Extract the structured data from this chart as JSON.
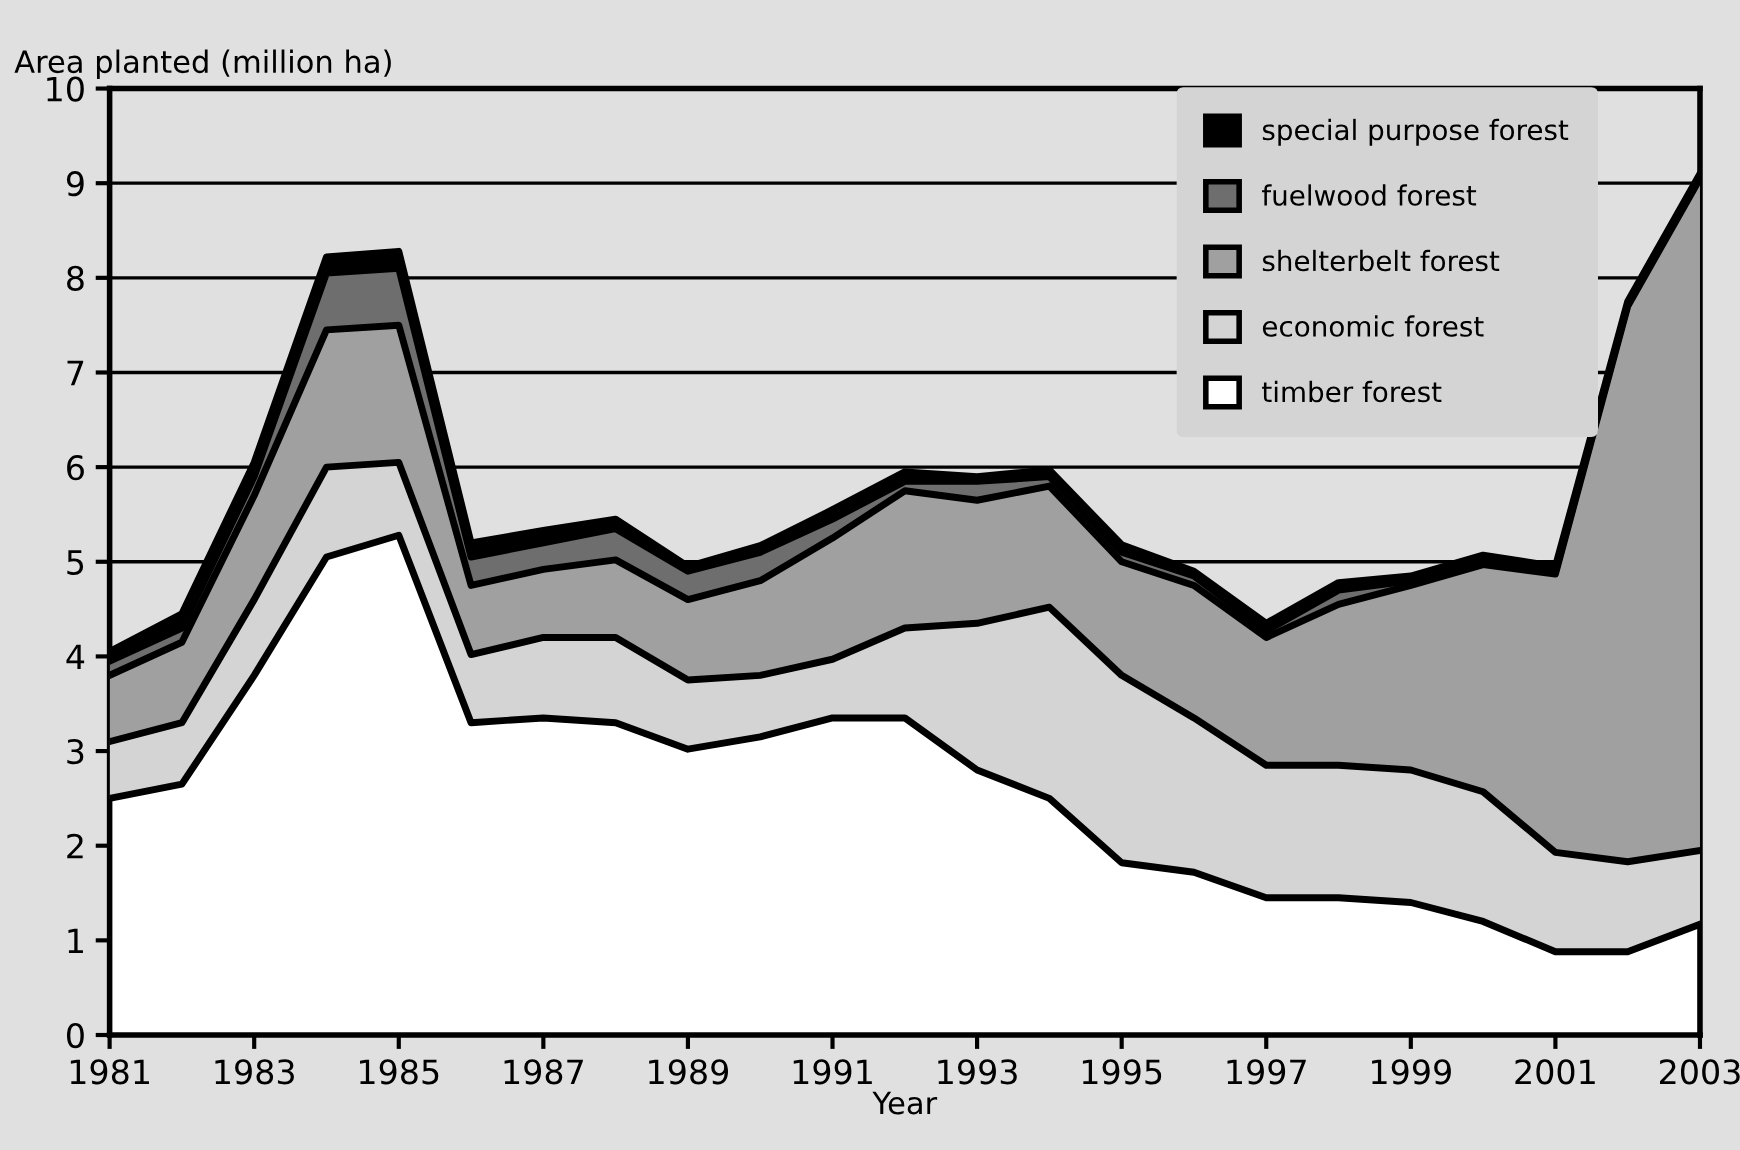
{
  "chart_data": {
    "type": "area",
    "stacked": true,
    "xlabel": "Year",
    "ylabel": "Area planted (million ha)",
    "x": [
      1981,
      1982,
      1983,
      1984,
      1985,
      1986,
      1987,
      1988,
      1989,
      1990,
      1991,
      1992,
      1993,
      1994,
      1995,
      1996,
      1997,
      1998,
      1999,
      2000,
      2001,
      2002,
      2003
    ],
    "xlim": [
      1981,
      2003
    ],
    "xticks": [
      1981,
      1983,
      1985,
      1987,
      1989,
      1991,
      1993,
      1995,
      1997,
      1999,
      2001,
      2003
    ],
    "ylim": [
      0,
      10
    ],
    "yticks": [
      0,
      1,
      2,
      3,
      4,
      5,
      6,
      7,
      8,
      9,
      10
    ],
    "grid": "y",
    "legend": "top right",
    "series": [
      {
        "name": "timber forest",
        "color": "#ffffff",
        "values": [
          2.5,
          2.65,
          3.8,
          5.05,
          5.28,
          3.3,
          3.35,
          3.3,
          3.02,
          3.15,
          3.35,
          3.35,
          2.8,
          2.5,
          1.82,
          1.72,
          1.45,
          1.45,
          1.4,
          1.2,
          0.88,
          0.88,
          1.17
        ]
      },
      {
        "name": "economic forest",
        "color": "#d4d4d4",
        "values": [
          0.6,
          0.65,
          0.8,
          0.95,
          0.77,
          0.72,
          0.85,
          0.9,
          0.73,
          0.65,
          0.62,
          0.95,
          1.55,
          2.02,
          1.98,
          1.63,
          1.4,
          1.4,
          1.4,
          1.37,
          1.05,
          0.95,
          0.78
        ]
      },
      {
        "name": "shelterbelt forest",
        "color": "#a0a0a0",
        "values": [
          0.7,
          0.85,
          1.1,
          1.45,
          1.45,
          0.73,
          0.72,
          0.82,
          0.85,
          1.0,
          1.28,
          1.45,
          1.3,
          1.28,
          1.2,
          1.4,
          1.35,
          1.7,
          1.95,
          2.4,
          2.94,
          5.87,
          7.1
        ]
      },
      {
        "name": "fuelwood forest",
        "color": "#6e6e6e",
        "values": [
          0.15,
          0.15,
          0.2,
          0.6,
          0.6,
          0.3,
          0.28,
          0.33,
          0.3,
          0.3,
          0.2,
          0.1,
          0.2,
          0.1,
          0.1,
          0.1,
          0.07,
          0.15,
          0.05,
          0.03,
          0.03,
          0.02,
          0.02
        ]
      },
      {
        "name": "special purpose forest",
        "color": "#000000",
        "values": [
          0.1,
          0.15,
          0.15,
          0.17,
          0.18,
          0.15,
          0.13,
          0.1,
          0.05,
          0.07,
          0.1,
          0.1,
          0.05,
          0.07,
          0.08,
          0.05,
          0.08,
          0.08,
          0.05,
          0.07,
          0.05,
          0.03,
          0.03
        ]
      }
    ]
  }
}
